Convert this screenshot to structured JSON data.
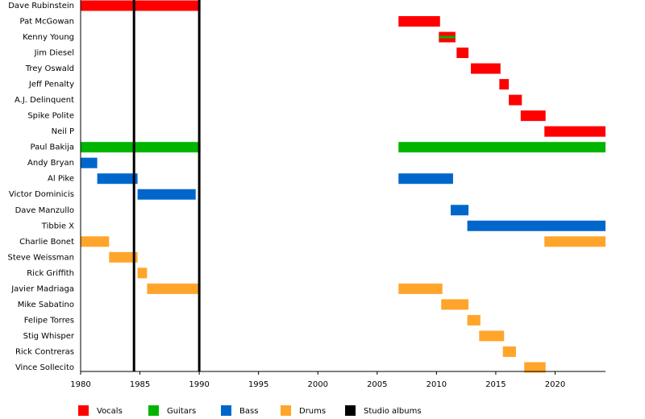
{
  "chart_data": {
    "type": "timeline",
    "categories": [
      "Dave Rubinstein",
      "Pat McGowan",
      "Kenny Young",
      "Jim Diesel",
      "Trey Oswald",
      "Jeff Penalty",
      "A.J. Delinquent",
      "Spike Polite",
      "Neil P",
      "Paul Bakija",
      "Andy Bryan",
      "Al Pike",
      "Victor Dominicis",
      "Dave Manzullo",
      "Tibbie X",
      "Charlie Bonet",
      "Steve Weissman",
      "Rick Griffith",
      "Javier Madriaga",
      "Mike Sabatino",
      "Felipe Torres",
      "Stig Whisper",
      "Rick Contreras",
      "Vince Sollecito"
    ],
    "xlim": [
      1980,
      2024.25
    ],
    "xticks": [
      1980,
      1985,
      1990,
      1995,
      2000,
      2005,
      2010,
      2015,
      2020
    ],
    "series": [
      {
        "name": "Vocals",
        "color": "#ff0000",
        "bars": [
          {
            "row": 0,
            "start": 1980,
            "end": 1990.1
          },
          {
            "row": 1,
            "start": 2006.8,
            "end": 2010.3
          },
          {
            "row": 2,
            "start": 2010.2,
            "end": 2011.6
          },
          {
            "row": 3,
            "start": 2011.7,
            "end": 2012.7
          },
          {
            "row": 4,
            "start": 2012.9,
            "end": 2015.4
          },
          {
            "row": 5,
            "start": 2015.3,
            "end": 2016.1
          },
          {
            "row": 6,
            "start": 2016.1,
            "end": 2017.2
          },
          {
            "row": 7,
            "start": 2017.1,
            "end": 2019.2
          },
          {
            "row": 8,
            "start": 2019.1,
            "end": 2024.25
          }
        ]
      },
      {
        "name": "Guitars",
        "color": "#00b400",
        "bars": [
          {
            "row": 2,
            "start": 2010.2,
            "end": 2011.6,
            "thin": true
          },
          {
            "row": 9,
            "start": 1980,
            "end": 1990.1
          },
          {
            "row": 9,
            "start": 2006.8,
            "end": 2024.25
          }
        ]
      },
      {
        "name": "Bass",
        "color": "#0066cc",
        "bars": [
          {
            "row": 10,
            "start": 1980,
            "end": 1981.4
          },
          {
            "row": 11,
            "start": 1981.4,
            "end": 1984.8
          },
          {
            "row": 11,
            "start": 2006.8,
            "end": 2011.4
          },
          {
            "row": 12,
            "start": 1984.8,
            "end": 1989.7
          },
          {
            "row": 13,
            "start": 2011.2,
            "end": 2012.7
          },
          {
            "row": 14,
            "start": 2012.6,
            "end": 2024.25
          }
        ]
      },
      {
        "name": "Drums",
        "color": "#ffa52c",
        "bars": [
          {
            "row": 15,
            "start": 1980,
            "end": 1982.4
          },
          {
            "row": 15,
            "start": 2019.1,
            "end": 2024.25
          },
          {
            "row": 16,
            "start": 1982.4,
            "end": 1984.8
          },
          {
            "row": 17,
            "start": 1984.8,
            "end": 1985.6
          },
          {
            "row": 18,
            "start": 1985.6,
            "end": 1990.1
          },
          {
            "row": 18,
            "start": 2006.8,
            "end": 2010.5
          },
          {
            "row": 19,
            "start": 2010.4,
            "end": 2012.7
          },
          {
            "row": 20,
            "start": 2012.6,
            "end": 2013.7
          },
          {
            "row": 21,
            "start": 2013.6,
            "end": 2015.7
          },
          {
            "row": 22,
            "start": 2015.6,
            "end": 2016.7
          },
          {
            "row": 23,
            "start": 2017.4,
            "end": 2019.2
          }
        ]
      },
      {
        "name": "Studio albums",
        "color": "#000000",
        "lines": [
          1984.5,
          1990
        ]
      }
    ]
  }
}
